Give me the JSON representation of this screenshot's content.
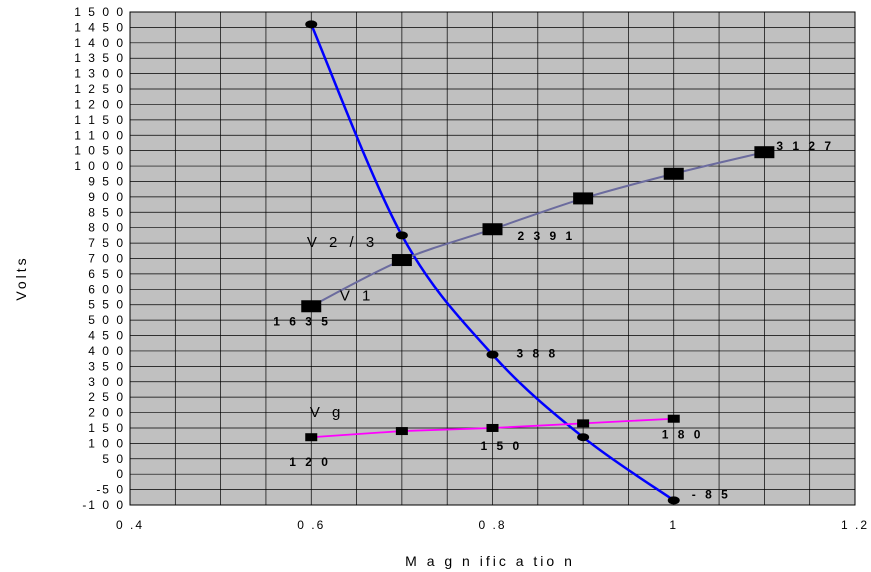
{
  "chart_data": {
    "type": "line",
    "title": "",
    "xlabel": "M a g n ific a tio n",
    "ylabel": "Volts",
    "xlim": [
      0.4,
      1.2
    ],
    "ylim": [
      -100,
      1500
    ],
    "x_ticks": [
      0.4,
      0.6,
      0.8,
      1,
      1.2
    ],
    "x_tick_labels": [
      "0 .4",
      "0 .6",
      "0 .8",
      "1",
      "1 .2"
    ],
    "x_minor_step": 0.05,
    "y_step": 50,
    "grid": true,
    "plot_background": "#c0c0c0",
    "series": [
      {
        "name": "V 1",
        "color": "#0000ff",
        "marker": "ellipse",
        "points": [
          {
            "x": 0.6,
            "y": 1460
          },
          {
            "x": 0.7,
            "y": 775
          },
          {
            "x": 0.8,
            "y": 388,
            "label": "3 8 8"
          },
          {
            "x": 0.9,
            "y": 120
          },
          {
            "x": 1.0,
            "y": -85,
            "label": "- 8 5"
          }
        ]
      },
      {
        "name": "V 2 / 3",
        "color": "#6b6b9e",
        "marker": "big-square",
        "points": [
          {
            "x": 0.6,
            "y": 545,
            "label": "1 6 3 5"
          },
          {
            "x": 0.7,
            "y": 695
          },
          {
            "x": 0.8,
            "y": 795,
            "label": "2 3 9 1"
          },
          {
            "x": 0.9,
            "y": 895
          },
          {
            "x": 1.0,
            "y": 975
          },
          {
            "x": 1.1,
            "y": 1045,
            "label": "3 1 2 7"
          }
        ]
      },
      {
        "name": "V g",
        "color": "#ff00ff",
        "marker": "square",
        "points": [
          {
            "x": 0.6,
            "y": 120,
            "label": "1 2 0"
          },
          {
            "x": 0.7,
            "y": 140
          },
          {
            "x": 0.8,
            "y": 150,
            "label": "1 5 0"
          },
          {
            "x": 0.9,
            "y": 165
          },
          {
            "x": 1.0,
            "y": 180,
            "label": "1 8 0"
          }
        ]
      }
    ]
  }
}
